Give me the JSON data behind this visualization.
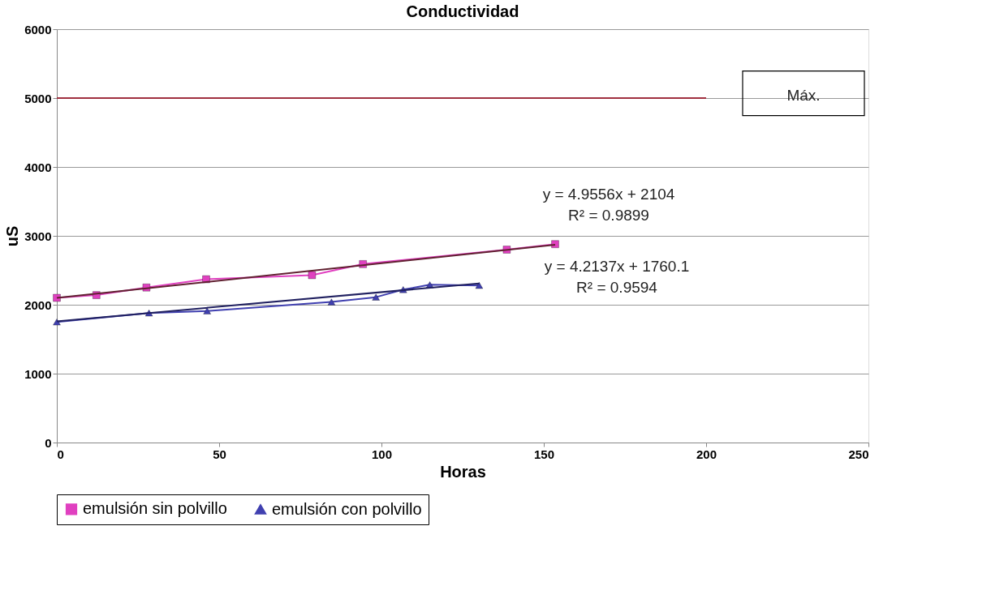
{
  "chart_data": {
    "type": "line",
    "title": "Conductividad",
    "xlabel": "Horas",
    "ylabel": "uS",
    "xlim": [
      0,
      250
    ],
    "xticks": [
      0,
      50,
      100,
      150,
      200,
      250
    ],
    "ylim": [
      0,
      6000
    ],
    "yticks": [
      0,
      1000,
      2000,
      3000,
      4000,
      5000,
      6000
    ],
    "grid": "y",
    "legend": "bottom",
    "series": [
      {
        "name": "emulsión sin polvillo",
        "color": "#e040c0",
        "marker": "square",
        "x": [
          0,
          12.2,
          27.6,
          46,
          78.6,
          94.3,
          138.6,
          153.5
        ],
        "values": [
          2100,
          2140,
          2250,
          2370,
          2430,
          2590,
          2800,
          2880
        ]
      },
      {
        "name": "emulsión con polvillo",
        "color": "#4040b0",
        "marker": "triangle",
        "x": [
          0,
          28.4,
          46.3,
          84.6,
          98.3,
          106.7,
          114.9,
          130.1
        ],
        "values": [
          1750,
          1880,
          1910,
          2040,
          2110,
          2220,
          2290,
          2280
        ]
      },
      {
        "color": "#a03040",
        "marker": "none",
        "x": [
          0,
          200
        ],
        "values": [
          5000,
          5000
        ]
      },
      {
        "color": "#602030",
        "marker": "none",
        "x": [
          0,
          153.5
        ],
        "values": [
          2100,
          2870
        ]
      },
      {
        "color": "#202060",
        "marker": "none",
        "x": [
          0,
          130.1
        ],
        "values": [
          1760,
          2310
        ]
      }
    ],
    "annotations": [
      "y = 4.9556x + 2104",
      "R² = 0.9899",
      "y = 4.2137x + 1760.1",
      "R² = 0.9594",
      "Máx."
    ]
  }
}
